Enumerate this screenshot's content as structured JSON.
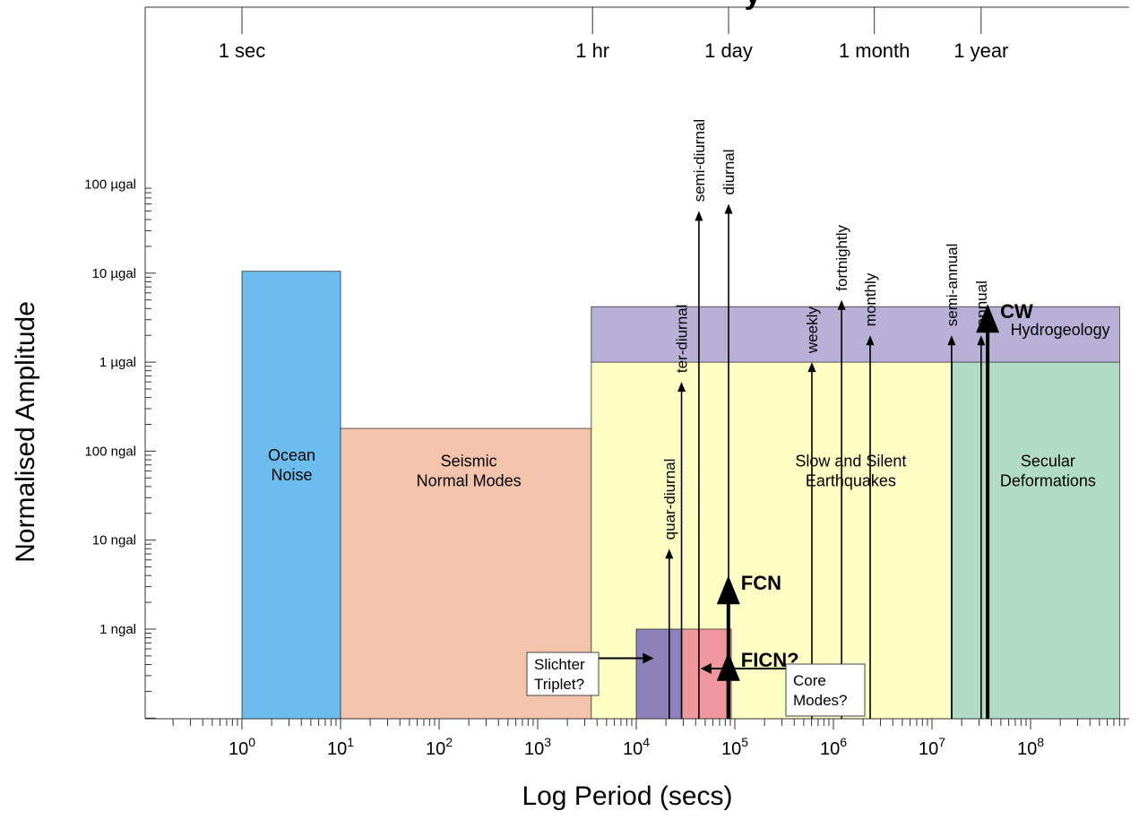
{
  "chart_data": {
    "type": "area",
    "title_fragment": "y",
    "xlabel": "Log Period (secs)",
    "ylabel": "Normalised Amplitude",
    "x_scale": "log",
    "y_scale": "log",
    "xlim": [
      0.012,
      800000000
    ],
    "ylim": [
      0.01,
      10000
    ],
    "ylim_units": "ngal",
    "x_ticks": [
      {
        "value": 1,
        "base": "10",
        "exp": "0"
      },
      {
        "value": 10,
        "base": "10",
        "exp": "1"
      },
      {
        "value": 100,
        "base": "10",
        "exp": "2"
      },
      {
        "value": 1000,
        "base": "10",
        "exp": "3"
      },
      {
        "value": 10000,
        "base": "10",
        "exp": "4"
      },
      {
        "value": 100000,
        "base": "10",
        "exp": "5"
      },
      {
        "value": 1000000,
        "base": "10",
        "exp": "6"
      },
      {
        "value": 10000000,
        "base": "10",
        "exp": "7"
      },
      {
        "value": 100000000,
        "base": "10",
        "exp": "8"
      }
    ],
    "y_ticks": [
      {
        "value": 1,
        "label": "1 ngal"
      },
      {
        "value": 10,
        "label": "10 ngal"
      },
      {
        "value": 100,
        "label": "100 ngal"
      },
      {
        "value": 1000,
        "label": "1 µgal"
      },
      {
        "value": 10000,
        "label": "10 µgal"
      },
      {
        "value": 100000,
        "label": "100 µgal"
      }
    ],
    "top_time_labels": [
      {
        "label": "1 sec",
        "value": 1
      },
      {
        "label": "1 hr",
        "value": 3600
      },
      {
        "label": "1 day",
        "value": 86400
      },
      {
        "label": "1 month",
        "value": 2600000
      },
      {
        "label": "1 year",
        "value": 31500000
      }
    ],
    "bands": [
      {
        "label_lines": [
          "Ocean",
          "Noise"
        ],
        "x0": 1,
        "x1": 10,
        "y0": 0.01,
        "y1": 10500,
        "color": "#6cbdee",
        "label_x": 3.2,
        "label_y": 70
      },
      {
        "label_lines": [
          "Seismic",
          "Normal Modes"
        ],
        "x0": 10,
        "x1": 3500,
        "y0": 0.01,
        "y1": 180,
        "color": "#f4c3ac",
        "label_x": 200,
        "label_y": 60
      },
      {
        "label_lines": [
          "Slow and Silent",
          "Earthquakes"
        ],
        "x0": 3500,
        "x1": 16000000,
        "y0": 0.01,
        "y1": 1000,
        "color": "#fefdc4",
        "label_x": 1500000,
        "label_y": 60
      },
      {
        "label_lines": [
          "Secular",
          "Deformations"
        ],
        "x0": 16000000,
        "x1": 800000000,
        "y0": 0.01,
        "y1": 1000,
        "color": "#b0dcc7",
        "label_x": 150000000,
        "label_y": 60
      },
      {
        "label_lines": [
          "Hydrogeology"
        ],
        "x0": 3500,
        "x1": 800000000,
        "y0": 1000,
        "y1": 4200,
        "color": "#b9b0d7",
        "label_x": 200000000,
        "label_y": 2300
      },
      {
        "label_lines": [],
        "x0": 10000,
        "x1": 29000,
        "y0": 0.01,
        "y1": 1,
        "color": "#8e80ba",
        "label_x": 0,
        "label_y": 0
      },
      {
        "label_lines": [],
        "x0": 29000,
        "x1": 92000,
        "y0": 0.01,
        "y1": 1,
        "color": "#f0969e",
        "label_x": 0,
        "label_y": 0
      }
    ],
    "arrows": [
      {
        "label": "quar-diurnal",
        "x": 21600,
        "y": 8,
        "bold": false
      },
      {
        "label": "ter-diurnal",
        "x": 28800,
        "y": 600,
        "bold": false
      },
      {
        "label": "semi-diurnal",
        "x": 43200,
        "y": 50000,
        "bold": false
      },
      {
        "label": "diurnal",
        "x": 86400,
        "y": 60000,
        "bold": false
      },
      {
        "label": "weekly",
        "x": 604800,
        "y": 1000,
        "bold": false
      },
      {
        "label": "fortnightly",
        "x": 1210000,
        "y": 5000,
        "bold": false
      },
      {
        "label": "monthly",
        "x": 2360000,
        "y": 2000,
        "bold": false
      },
      {
        "label": "semi-annual",
        "x": 15800000,
        "y": 2000,
        "bold": false
      },
      {
        "label": "annual",
        "x": 31500000,
        "y": 2000,
        "bold": false
      },
      {
        "label": "CW",
        "x": 36700000,
        "y": 4500,
        "bold": true
      },
      {
        "label": "FCN",
        "x": 86000,
        "y": 4,
        "bold": true
      },
      {
        "label": "FICN?",
        "x": 86000,
        "y": 0.55,
        "bold": true
      }
    ],
    "callouts": [
      {
        "lines": [
          "Slichter",
          "Triplet?"
        ],
        "points_to_x": 15000,
        "points_to_y": 0.47
      },
      {
        "lines": [
          "Core",
          "Modes?"
        ],
        "points_to_x": 45000,
        "points_to_y": 0.36
      }
    ]
  }
}
